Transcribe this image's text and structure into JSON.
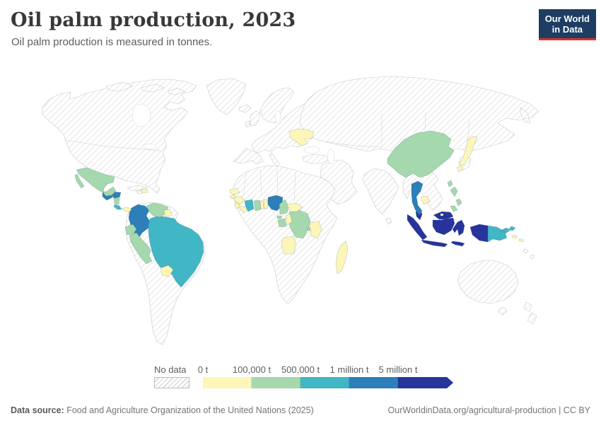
{
  "header": {
    "title": "Oil palm production, 2023",
    "subtitle": "Oil palm production is measured in tonnes."
  },
  "logo": {
    "line1": "Our World",
    "line2": "in Data",
    "bg_color": "#1d3d63",
    "accent_color": "#d6332c"
  },
  "legend": {
    "no_data_label": "No data",
    "ticks": [
      "0 t",
      "100,000 t",
      "500,000 t",
      "1 million t",
      "5 million t"
    ],
    "classes": [
      {
        "range": "0 t – 100,000 t",
        "color": "#fcf7b8"
      },
      {
        "range": "100,000 t – 500,000 t",
        "color": "#a5d8ad"
      },
      {
        "range": "500,000 t – 1 million t",
        "color": "#41b6c4"
      },
      {
        "range": "1 million t – 5 million t",
        "color": "#2c7fb8"
      },
      {
        "range": "5 million t and more",
        "color": "#26349c"
      }
    ]
  },
  "footer": {
    "source_label": "Data source:",
    "source_text": " Food and Agriculture Organization of the United Nations (2025)",
    "right_text": "OurWorldinData.org/agricultural-production | CC BY"
  },
  "chart_data": {
    "type": "heatmap",
    "subtype": "world-choropleth-map",
    "title": "Oil palm production, 2023",
    "unit": "tonnes",
    "no_data_style": "hatched",
    "bins": [
      "0 t – 100,000 t",
      "100,000 t – 500,000 t",
      "500,000 t – 1 million t",
      "1 million t – 5 million t",
      "5 million t +"
    ],
    "countries": [
      {
        "key": "indonesia",
        "name": "Indonesia",
        "bin": 4
      },
      {
        "key": "malaysia",
        "name": "Malaysia",
        "bin": 4
      },
      {
        "key": "colombia",
        "name": "Colombia",
        "bin": 3
      },
      {
        "key": "guatemala",
        "name": "Guatemala",
        "bin": 3
      },
      {
        "key": "honduras",
        "name": "Honduras",
        "bin": 3
      },
      {
        "key": "nigeria",
        "name": "Nigeria",
        "bin": 3
      },
      {
        "key": "thailand",
        "name": "Thailand",
        "bin": 3
      },
      {
        "key": "brazil",
        "name": "Brazil",
        "bin": 2
      },
      {
        "key": "cote-divoire",
        "name": "Cote d'Ivoire",
        "bin": 2
      },
      {
        "key": "costa-rica",
        "name": "Costa Rica",
        "bin": 2
      },
      {
        "key": "papua-new-guinea",
        "name": "Papua New Guinea",
        "bin": 2
      },
      {
        "key": "mexico",
        "name": "Mexico",
        "bin": 1
      },
      {
        "key": "nicaragua",
        "name": "Nicaragua",
        "bin": 1
      },
      {
        "key": "venezuela",
        "name": "Venezuela",
        "bin": 1
      },
      {
        "key": "ecuador",
        "name": "Ecuador",
        "bin": 1
      },
      {
        "key": "peru",
        "name": "Peru",
        "bin": 1
      },
      {
        "key": "ghana",
        "name": "Ghana",
        "bin": 1
      },
      {
        "key": "cameroon",
        "name": "Cameroon",
        "bin": 1
      },
      {
        "key": "equatorial-guinea",
        "name": "Equatorial Guinea",
        "bin": 1
      },
      {
        "key": "gabon",
        "name": "Gabon",
        "bin": 1
      },
      {
        "key": "drc",
        "name": "Democratic Republic of Congo",
        "bin": 1
      },
      {
        "key": "burundi",
        "name": "Burundi",
        "bin": 1
      },
      {
        "key": "china",
        "name": "China",
        "bin": 1
      },
      {
        "key": "taiwan",
        "name": "Taiwan",
        "bin": 1
      },
      {
        "key": "philippines",
        "name": "Philippines",
        "bin": 1
      },
      {
        "key": "panama",
        "name": "Panama",
        "bin": 0
      },
      {
        "key": "dominican-republic",
        "name": "Dominican Republic",
        "bin": 0
      },
      {
        "key": "suriname",
        "name": "Suriname",
        "bin": 0
      },
      {
        "key": "paraguay",
        "name": "Paraguay",
        "bin": 0
      },
      {
        "key": "ukraine",
        "name": "Ukraine",
        "bin": 0
      },
      {
        "key": "senegal",
        "name": "Senegal",
        "bin": 0
      },
      {
        "key": "guinea-bissau",
        "name": "Guinea-Bissau",
        "bin": 0
      },
      {
        "key": "guinea",
        "name": "Guinea",
        "bin": 0
      },
      {
        "key": "sierra-leone",
        "name": "Sierra Leone",
        "bin": 0
      },
      {
        "key": "liberia",
        "name": "Liberia",
        "bin": 0
      },
      {
        "key": "togo",
        "name": "Togo",
        "bin": 0
      },
      {
        "key": "benin",
        "name": "Benin",
        "bin": 0
      },
      {
        "key": "central-african-republic",
        "name": "Central African Republic",
        "bin": 0
      },
      {
        "key": "congo",
        "name": "Congo",
        "bin": 0
      },
      {
        "key": "angola",
        "name": "Angola",
        "bin": 0
      },
      {
        "key": "tanzania",
        "name": "Tanzania",
        "bin": 0
      },
      {
        "key": "madagascar",
        "name": "Madagascar",
        "bin": 0
      },
      {
        "key": "japan",
        "name": "Japan",
        "bin": 0
      },
      {
        "key": "cambodia",
        "name": "Cambodia",
        "bin": 0
      },
      {
        "key": "brunei",
        "name": "Brunei",
        "bin": 0
      },
      {
        "key": "solomon-islands",
        "name": "Solomon Islands",
        "bin": 0
      }
    ]
  }
}
